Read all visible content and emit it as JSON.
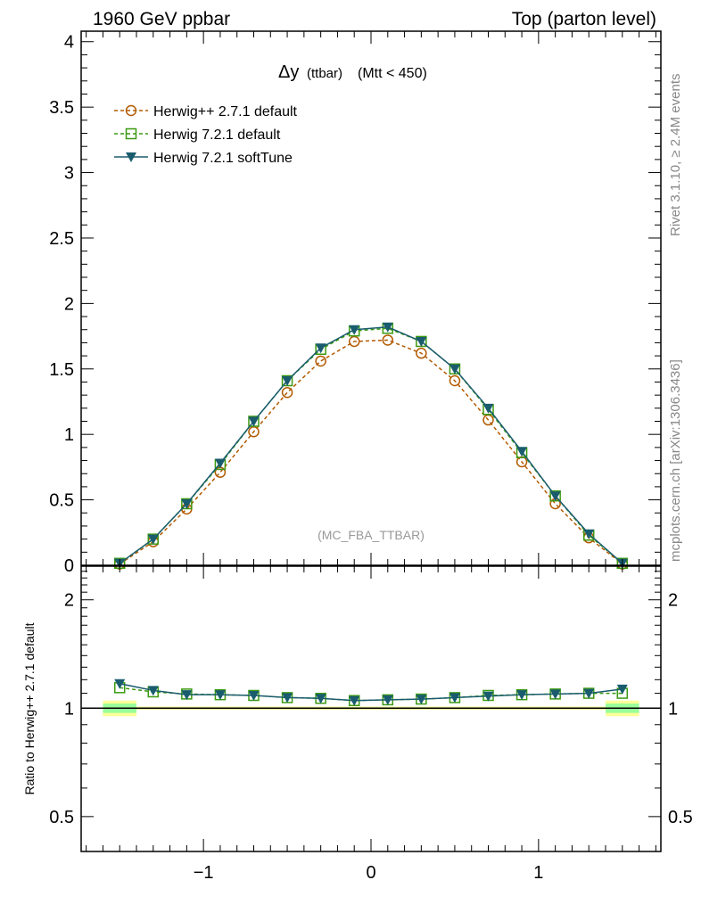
{
  "header": {
    "left": "1960 GeV ppbar",
    "right": "Top (parton level)"
  },
  "side_labels": {
    "rivet": "Rivet 3.1.10, ≥ 2.4M events",
    "mcplots": "mcplots.cern.ch [arXiv:1306.3436]"
  },
  "colors": {
    "herwigpp": "#b35a00",
    "h7default": "#3a9a10",
    "softtune": "#1a5c6e",
    "band_yellow": "#ffff99",
    "band_green": "#99ff99"
  },
  "chart_data": [
    {
      "type": "line",
      "title": "Δy (ttbar) (Mtt < 450)",
      "title_main": "Δy",
      "title_rest": "(ttbar)",
      "title_cut": "(Mtt < 450)",
      "watermark": "(MC_FBA_TTBAR)",
      "xlim": [
        -1.73,
        1.73
      ],
      "ylim": [
        0,
        4.08
      ],
      "yticks": [
        0,
        0.5,
        1,
        1.5,
        2,
        2.5,
        3,
        3.5,
        4
      ],
      "ytick_labels": [
        "0",
        "0.5",
        "1",
        "1.5",
        "2",
        "2.5",
        "3",
        "3.5",
        "4"
      ],
      "x": [
        -1.5,
        -1.3,
        -1.1,
        -0.9,
        -0.7,
        -0.5,
        -0.3,
        -0.1,
        0.1,
        0.3,
        0.5,
        0.7,
        0.9,
        1.1,
        1.3,
        1.5
      ],
      "legend_position": "top-left",
      "series": [
        {
          "name": "Herwig++ 2.7.1 default",
          "marker": "circle",
          "style": "dashed",
          "values": [
            0.01,
            0.18,
            0.43,
            0.71,
            1.02,
            1.32,
            1.56,
            1.71,
            1.72,
            1.62,
            1.41,
            1.11,
            0.79,
            0.47,
            0.21,
            0.01
          ]
        },
        {
          "name": "Herwig 7.2.1 default",
          "marker": "square",
          "style": "dashed",
          "values": [
            0.015,
            0.2,
            0.47,
            0.77,
            1.1,
            1.41,
            1.65,
            1.79,
            1.81,
            1.71,
            1.5,
            1.19,
            0.86,
            0.53,
            0.23,
            0.015
          ]
        },
        {
          "name": "Herwig 7.2.1 softTune",
          "marker": "triangle-down",
          "style": "solid",
          "values": [
            0.015,
            0.2,
            0.47,
            0.78,
            1.1,
            1.41,
            1.66,
            1.8,
            1.82,
            1.71,
            1.5,
            1.2,
            0.87,
            0.53,
            0.24,
            0.015
          ]
        }
      ]
    },
    {
      "type": "line",
      "ylabel": "Ratio to Herwig++ 2.7.1 default",
      "yscale": "log",
      "ylim": [
        0.4,
        2.48
      ],
      "yticks": [
        0.5,
        1,
        2
      ],
      "ytick_labels": [
        "0.5",
        "1",
        "2"
      ],
      "xticks": [
        -1,
        0,
        1
      ],
      "xtick_labels": [
        "−1",
        "0",
        "1"
      ],
      "x": [
        -1.5,
        -1.3,
        -1.1,
        -0.9,
        -0.7,
        -0.5,
        -0.3,
        -0.1,
        0.1,
        0.3,
        0.5,
        0.7,
        0.9,
        1.1,
        1.3,
        1.5
      ],
      "series": [
        {
          "name": "Herwig++ 2.7.1 default",
          "values": [
            1,
            1,
            1,
            1,
            1,
            1,
            1,
            1,
            1,
            1,
            1,
            1,
            1,
            1,
            1,
            1
          ]
        },
        {
          "name": "Herwig 7.2.1 default",
          "values": [
            1.14,
            1.11,
            1.095,
            1.09,
            1.085,
            1.07,
            1.065,
            1.05,
            1.055,
            1.06,
            1.07,
            1.085,
            1.09,
            1.095,
            1.1,
            1.1
          ]
        },
        {
          "name": "Herwig 7.2.1 softTune",
          "values": [
            1.17,
            1.12,
            1.09,
            1.09,
            1.085,
            1.07,
            1.065,
            1.05,
            1.055,
            1.06,
            1.07,
            1.08,
            1.09,
            1.095,
            1.1,
            1.13
          ]
        }
      ]
    }
  ]
}
